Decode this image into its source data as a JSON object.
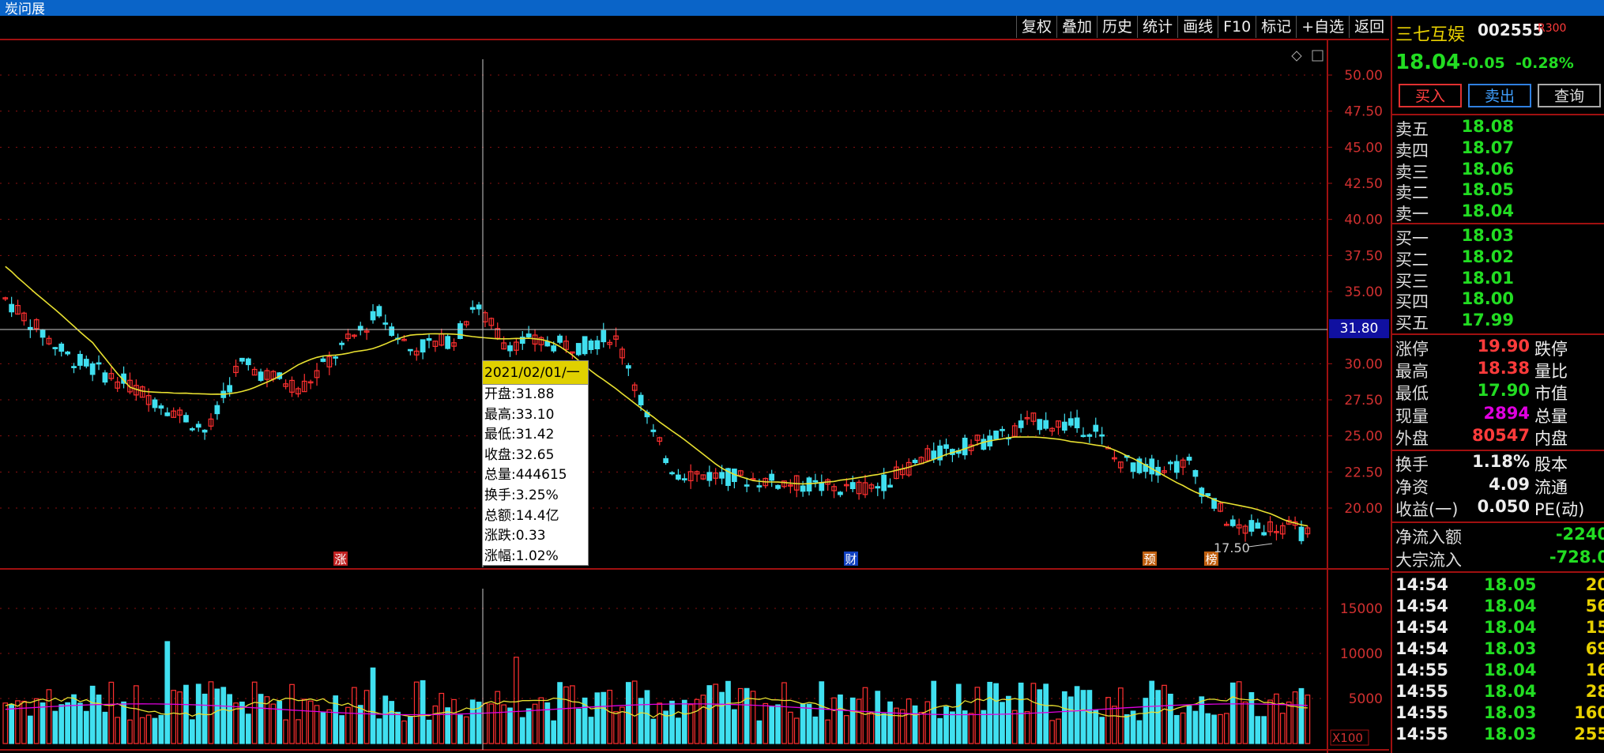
{
  "window": {
    "title": "炭问展"
  },
  "toolbar": [
    "复权",
    "叠加",
    "历史",
    "统计",
    "画线",
    "F10",
    "标记",
    "+自选",
    "返回"
  ],
  "stock": {
    "name": "三七互娱",
    "code": "002555",
    "badge": "R300",
    "price": "18.04",
    "change": "-0.05",
    "change_pct": "-0.28%"
  },
  "actions": {
    "buy": "买入",
    "sell": "卖出",
    "query": "查询"
  },
  "order_book": {
    "asks": [
      {
        "label": "卖五",
        "price": "18.08"
      },
      {
        "label": "卖四",
        "price": "18.07"
      },
      {
        "label": "卖三",
        "price": "18.06"
      },
      {
        "label": "卖二",
        "price": "18.05"
      },
      {
        "label": "卖一",
        "price": "18.04"
      }
    ],
    "bids": [
      {
        "label": "买一",
        "price": "18.03"
      },
      {
        "label": "买二",
        "price": "18.02"
      },
      {
        "label": "买三",
        "price": "18.01"
      },
      {
        "label": "买四",
        "price": "18.00"
      },
      {
        "label": "买五",
        "price": "17.99"
      }
    ]
  },
  "stats": [
    {
      "label": "涨停",
      "value": "19.90",
      "label2": "跌停",
      "color": "r"
    },
    {
      "label": "最高",
      "value": "18.38",
      "label2": "量比",
      "color": "r"
    },
    {
      "label": "最低",
      "value": "17.90",
      "label2": "市值",
      "color": "g"
    },
    {
      "label": "现量",
      "value": "2894",
      "label2": "总量",
      "color": "m"
    },
    {
      "label": "外盘",
      "value": "80547",
      "label2": "内盘",
      "color": "r"
    }
  ],
  "stats2": [
    {
      "label": "换手",
      "value": "1.18%",
      "label2": "股本"
    },
    {
      "label": "净资",
      "value": "4.09",
      "label2": "流通"
    },
    {
      "label": "收益(一)",
      "value": "0.050",
      "label2": "PE(动)"
    }
  ],
  "flows": [
    {
      "label": "净流入额",
      "value": "-2240"
    },
    {
      "label": "大宗流入",
      "value": "-728.0"
    }
  ],
  "ticks": [
    {
      "time": "14:54",
      "price": "18.05",
      "vol": "20"
    },
    {
      "time": "14:54",
      "price": "18.04",
      "vol": "56"
    },
    {
      "time": "14:54",
      "price": "18.04",
      "vol": "15"
    },
    {
      "time": "14:54",
      "price": "18.03",
      "vol": "69"
    },
    {
      "time": "14:55",
      "price": "18.04",
      "vol": "16"
    },
    {
      "time": "14:55",
      "price": "18.04",
      "vol": "28"
    },
    {
      "time": "14:55",
      "price": "18.03",
      "vol": "160"
    },
    {
      "time": "14:55",
      "price": "18.03",
      "vol": "255"
    }
  ],
  "tooltip": {
    "date": "2021/02/01/一",
    "lines": [
      "开盘:31.88",
      "最高:33.10",
      "最低:31.42",
      "收盘:32.65",
      "总量:444615",
      "换手:3.25%",
      "总额:14.4亿",
      "涨跌:0.33",
      "涨幅:1.02%"
    ]
  },
  "crosshair_price": "31.80",
  "price_axis": [
    "50.00",
    "47.50",
    "45.00",
    "42.50",
    "40.00",
    "37.50",
    "35.00",
    "30.00",
    "27.50",
    "25.00",
    "22.50",
    "20.00"
  ],
  "volume_axis": [
    "15000",
    "10000",
    "5000"
  ],
  "volume_unit": "X100",
  "low_annotation": "17.50",
  "markers": [
    {
      "text": "涨",
      "color": "#c02020"
    },
    {
      "text": "财",
      "color": "#1040c0"
    },
    {
      "text": "预",
      "color": "#c06010"
    },
    {
      "text": "榜",
      "color": "#c06010"
    }
  ],
  "colors": {
    "up": "#ff3030",
    "down": "#40e0f0",
    "ma": "#e8e030",
    "ma2": "#e000e0",
    "grid": "#8a1010"
  }
}
